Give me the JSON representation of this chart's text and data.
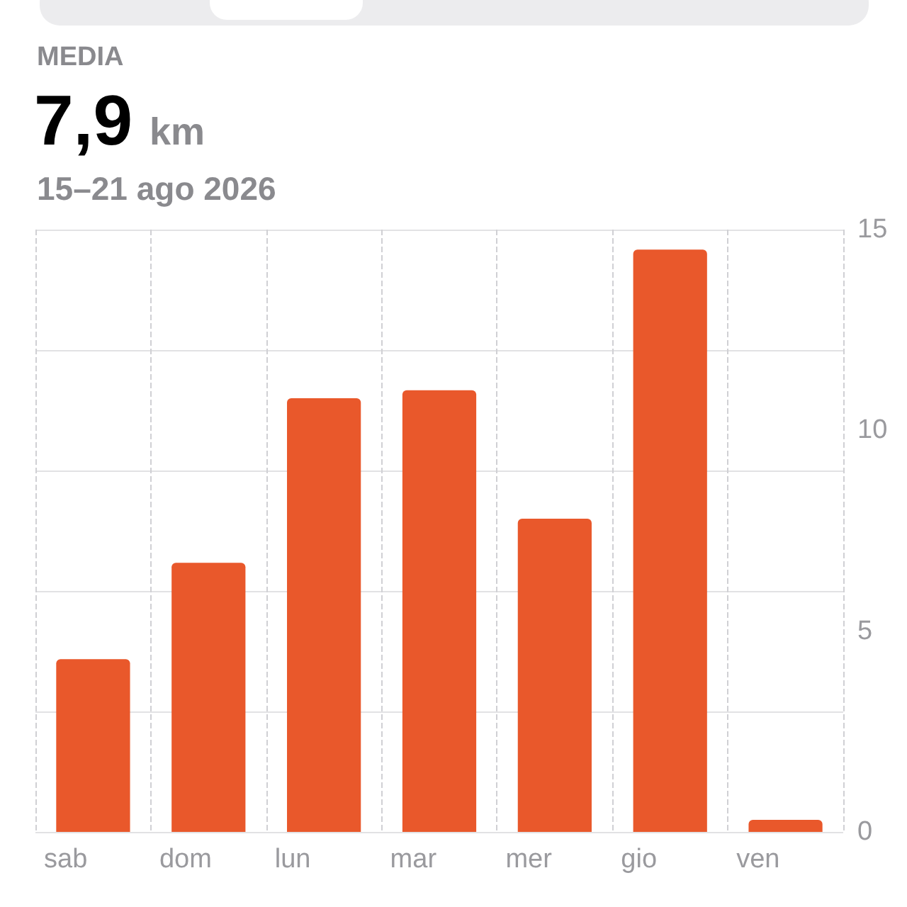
{
  "chart_data": {
    "type": "bar",
    "title": "MEDIA",
    "subtitle": "15–21 ago 2026",
    "annotations": [
      "7,9",
      "km"
    ],
    "categories": [
      "sab",
      "dom",
      "lun",
      "mar",
      "mer",
      "gio",
      "ven"
    ],
    "values": [
      4.3,
      6.7,
      10.8,
      11.0,
      7.8,
      14.5,
      0.3
    ],
    "color": "#e9582b",
    "ylim": [
      0,
      15
    ],
    "yticks": [
      0,
      5,
      10,
      15
    ],
    "grid": true
  }
}
